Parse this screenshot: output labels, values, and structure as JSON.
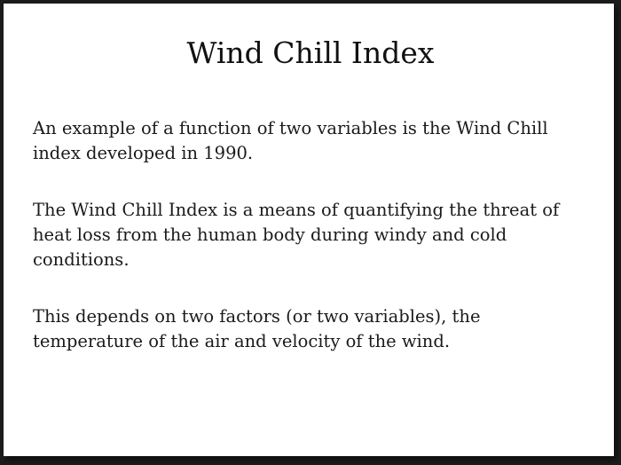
{
  "slide": {
    "title": "Wind Chill Index",
    "paragraphs": [
      "An example of a function of two variables is the Wind Chill index developed in 1990.",
      "The Wind Chill Index is a means of quantifying the threat of heat loss from the human body during windy and cold conditions.",
      "This depends on two factors (or two variables), the temperature of the air and velocity of the wind."
    ]
  }
}
